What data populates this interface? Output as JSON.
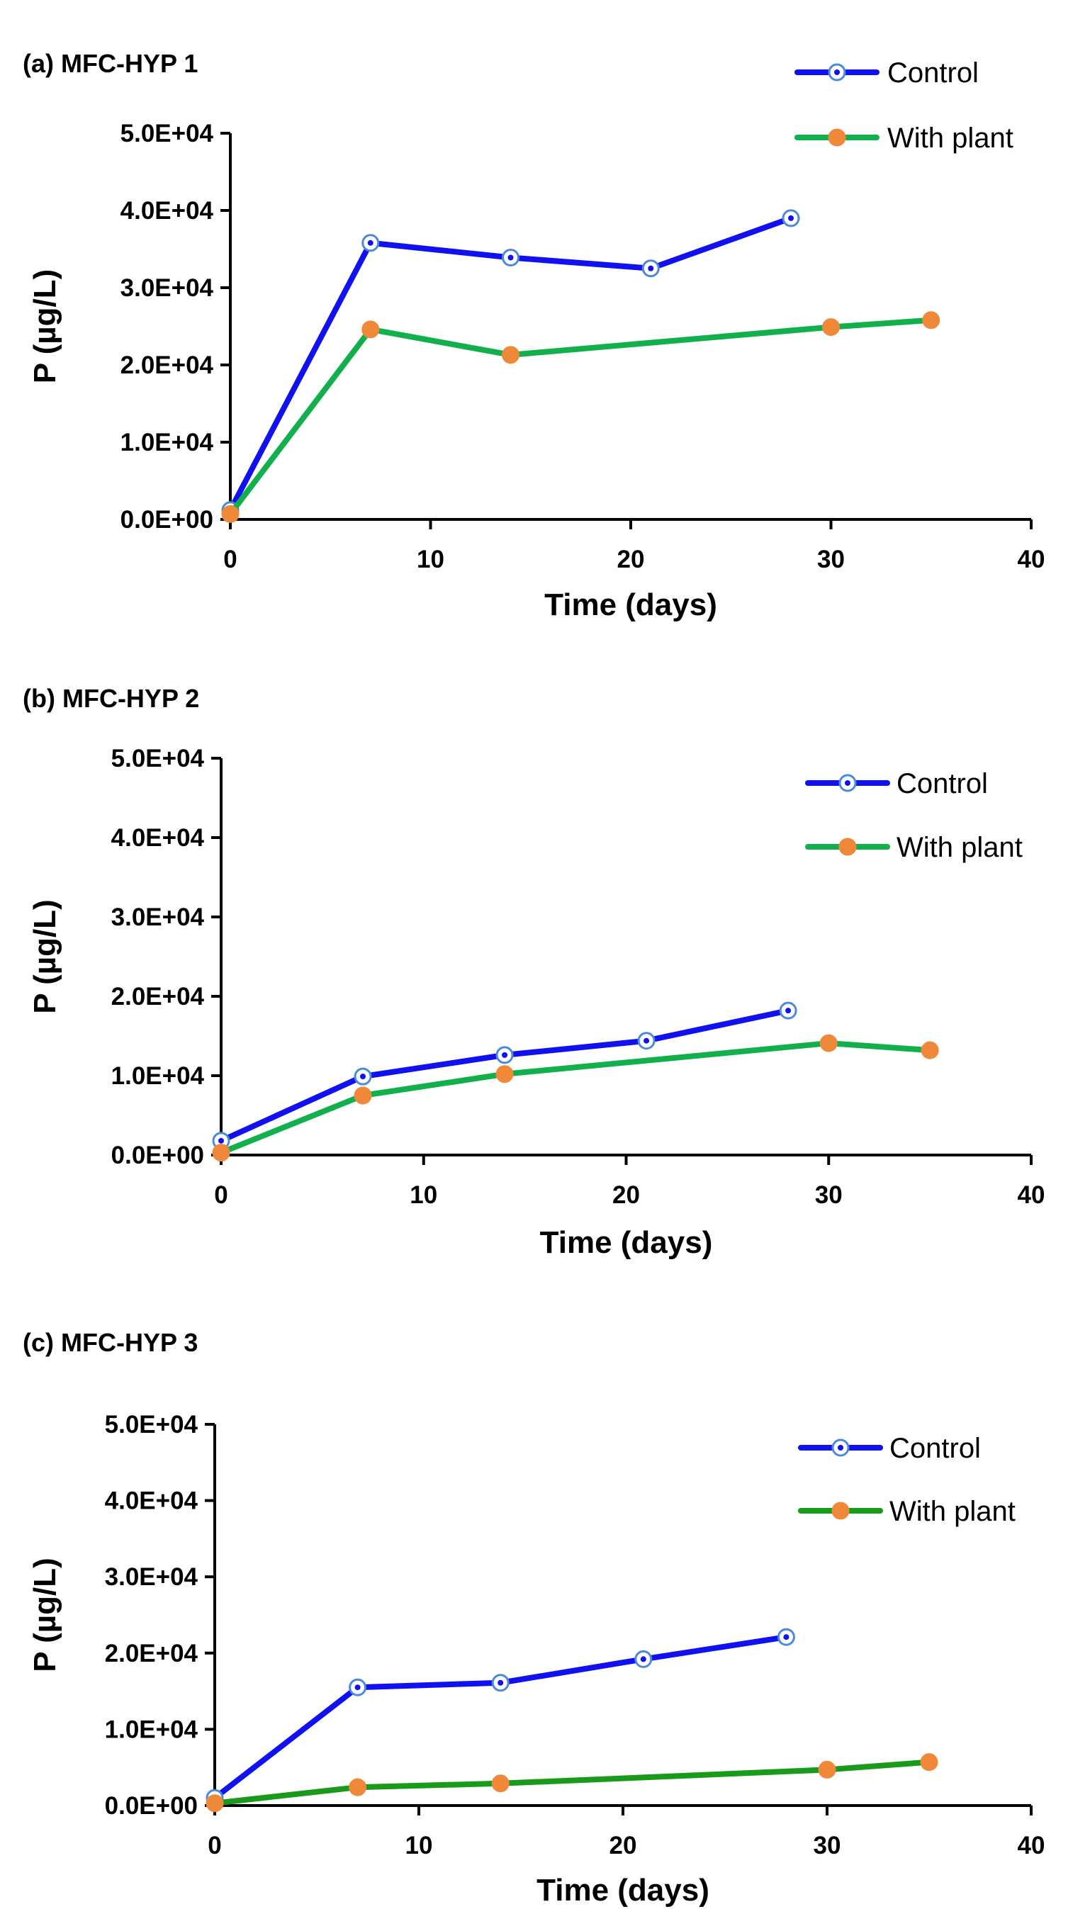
{
  "colors": {
    "control": "#1010F0",
    "control_marker_edge": "#4A8AD8",
    "with_plant": "#12B04C",
    "with_plant_c": "#199A1A",
    "with_plant_marker": "#F0883A",
    "axis": "#000000"
  },
  "chart_data": [
    {
      "type": "line",
      "title": "(a) MFC-HYP 1",
      "xlabel": "Time (days)",
      "ylabel": "P (µg/L)",
      "xlim": [
        0,
        40
      ],
      "ylim": [
        0,
        50000
      ],
      "x_ticks": [
        "0",
        "10",
        "20",
        "30",
        "40"
      ],
      "y_ticks": [
        "0.0E+00",
        "1.0E+04",
        "2.0E+04",
        "3.0E+04",
        "4.0E+04",
        "5.0E+04"
      ],
      "legend_position": "top-right",
      "series": [
        {
          "name": "Control",
          "x": [
            0,
            7,
            14,
            21,
            28
          ],
          "values": [
            1200,
            35800,
            33900,
            32500,
            39000
          ]
        },
        {
          "name": "With plant",
          "x": [
            0,
            7,
            14,
            30,
            35
          ],
          "values": [
            700,
            24600,
            21300,
            24900,
            25800
          ]
        }
      ]
    },
    {
      "type": "line",
      "title": "(b) MFC-HYP 2",
      "xlabel": "Time (days)",
      "ylabel": "P (µg/L)",
      "xlim": [
        0,
        40
      ],
      "ylim": [
        0,
        50000
      ],
      "x_ticks": [
        "0",
        "10",
        "20",
        "30",
        "40"
      ],
      "y_ticks": [
        "0.0E+00",
        "1.0E+04",
        "2.0E+04",
        "3.0E+04",
        "4.0E+04",
        "5.0E+04"
      ],
      "legend_position": "top-right",
      "series": [
        {
          "name": "Control",
          "x": [
            0,
            7,
            14,
            21,
            28
          ],
          "values": [
            1800,
            9900,
            12600,
            14400,
            18200
          ]
        },
        {
          "name": "With plant",
          "x": [
            0,
            7,
            14,
            30,
            35
          ],
          "values": [
            300,
            7500,
            10200,
            14100,
            13200
          ]
        }
      ]
    },
    {
      "type": "line",
      "title": "(c) MFC-HYP 3",
      "xlabel": "Time (days)",
      "ylabel": "P (µg/L)",
      "xlim": [
        0,
        40
      ],
      "ylim": [
        0,
        50000
      ],
      "x_ticks": [
        "0",
        "10",
        "20",
        "30",
        "40"
      ],
      "y_ticks": [
        "0.0E+00",
        "1.0E+04",
        "2.0E+04",
        "3.0E+04",
        "4.0E+04",
        "5.0E+04"
      ],
      "legend_position": "top-right",
      "series": [
        {
          "name": "Control",
          "x": [
            0,
            7,
            14,
            21,
            28
          ],
          "values": [
            1000,
            15500,
            16100,
            19200,
            22100
          ]
        },
        {
          "name": "With plant",
          "x": [
            0,
            7,
            14,
            30,
            35
          ],
          "values": [
            300,
            2400,
            2900,
            4700,
            5700
          ]
        }
      ]
    }
  ]
}
